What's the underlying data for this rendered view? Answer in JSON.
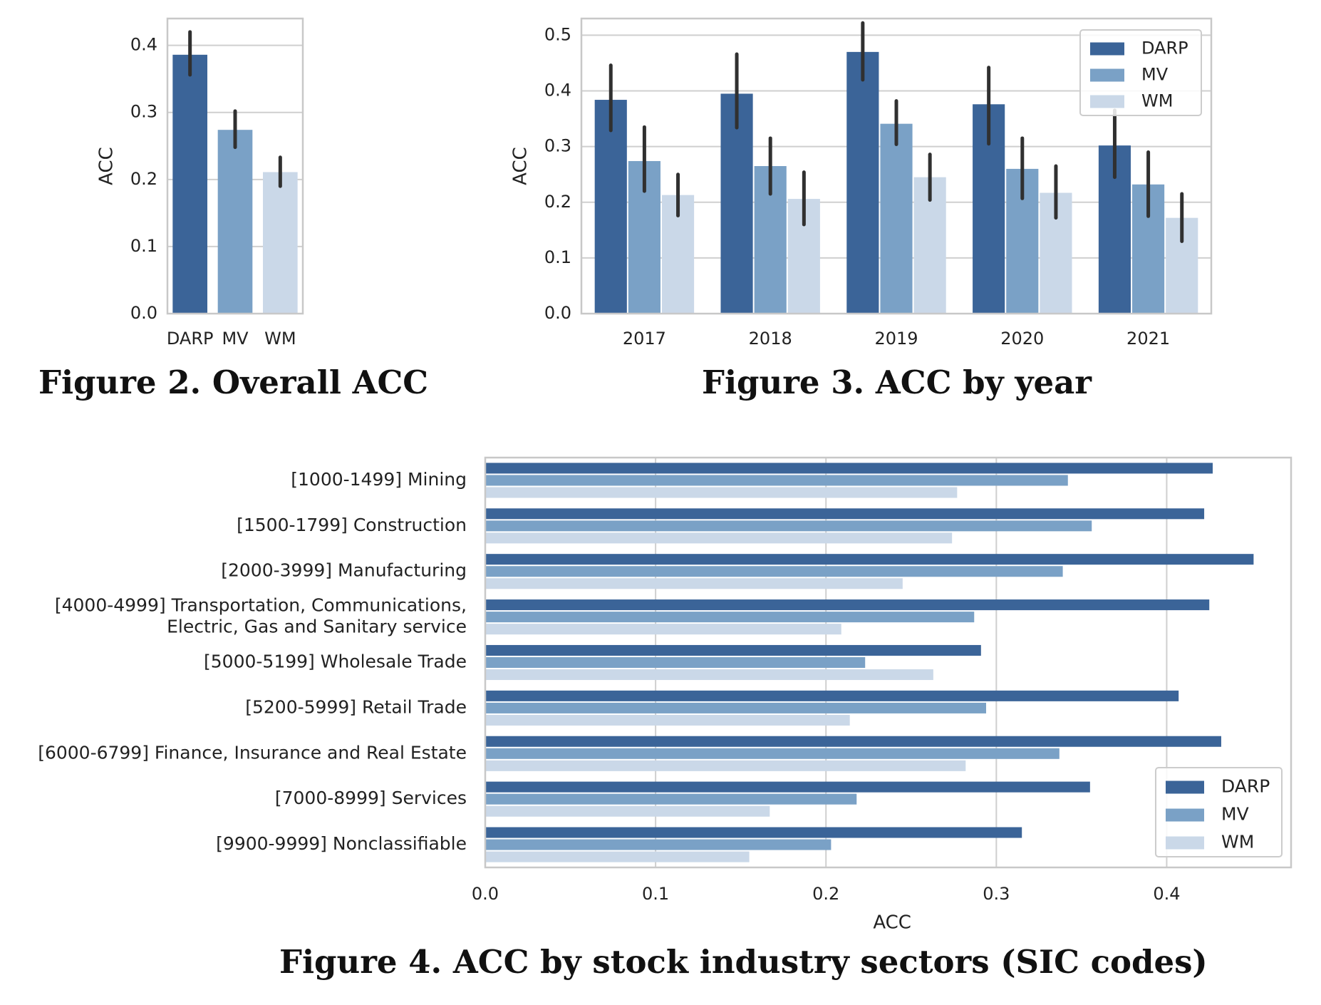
{
  "colors": {
    "DARP": "#3b6498",
    "MV": "#7aa1c6",
    "WM": "#cad8e8",
    "grid": "#cfcfcf",
    "frame": "#c8c8c8",
    "error": "#303030",
    "text": "#222222"
  },
  "captions": {
    "fig2": "Figure 2.  Overall ACC",
    "fig3": "Figure 3.  ACC by year",
    "fig4": "Figure 4.  ACC by stock industry sectors (SIC codes)"
  },
  "chart_data": [
    {
      "id": "fig2",
      "type": "bar",
      "title": "Overall ACC",
      "xlabel": "",
      "ylabel": "ACC",
      "ylim": [
        0,
        0.44
      ],
      "yticks": [
        0.0,
        0.1,
        0.2,
        0.3,
        0.4
      ],
      "ytick_labels": [
        "0.0",
        "0.1",
        "0.2",
        "0.3",
        "0.4"
      ],
      "grid": true,
      "categories": [
        "DARP",
        "MV",
        "WM"
      ],
      "values": [
        0.386,
        0.274,
        0.211
      ],
      "errors": [
        [
          0.356,
          0.42
        ],
        [
          0.248,
          0.302
        ],
        [
          0.19,
          0.233
        ]
      ]
    },
    {
      "id": "fig3",
      "type": "bar",
      "title": "ACC by year",
      "xlabel": "",
      "ylabel": "ACC",
      "ylim": [
        0,
        0.53
      ],
      "yticks": [
        0.0,
        0.1,
        0.2,
        0.3,
        0.4,
        0.5
      ],
      "ytick_labels": [
        "0.0",
        "0.1",
        "0.2",
        "0.3",
        "0.4",
        "0.5"
      ],
      "grid": true,
      "legend": "top-right",
      "categories": [
        "2017",
        "2018",
        "2019",
        "2020",
        "2021"
      ],
      "series": [
        {
          "name": "DARP",
          "values": [
            0.384,
            0.395,
            0.47,
            0.376,
            0.302
          ],
          "errors": [
            [
              0.329,
              0.446
            ],
            [
              0.334,
              0.466
            ],
            [
              0.42,
              0.522
            ],
            [
              0.305,
              0.442
            ],
            [
              0.245,
              0.365
            ]
          ]
        },
        {
          "name": "MV",
          "values": [
            0.274,
            0.265,
            0.341,
            0.26,
            0.232
          ],
          "errors": [
            [
              0.22,
              0.335
            ],
            [
              0.215,
              0.315
            ],
            [
              0.304,
              0.382
            ],
            [
              0.207,
              0.315
            ],
            [
              0.175,
              0.29
            ]
          ]
        },
        {
          "name": "WM",
          "values": [
            0.213,
            0.206,
            0.245,
            0.217,
            0.172
          ],
          "errors": [
            [
              0.176,
              0.25
            ],
            [
              0.16,
              0.254
            ],
            [
              0.204,
              0.286
            ],
            [
              0.172,
              0.265
            ],
            [
              0.13,
              0.215
            ]
          ]
        }
      ]
    },
    {
      "id": "fig4",
      "type": "bar",
      "orientation": "horizontal",
      "title": "ACC by stock industry sectors (SIC codes)",
      "xlabel": "ACC",
      "ylabel": "",
      "xlim": [
        0,
        0.473
      ],
      "xticks": [
        0.0,
        0.1,
        0.2,
        0.3,
        0.4
      ],
      "xtick_labels": [
        "0.0",
        "0.1",
        "0.2",
        "0.3",
        "0.4"
      ],
      "grid": true,
      "legend": "bottom-right",
      "categories": [
        "[1000-1499] Mining",
        "[1500-1799] Construction",
        "[2000-3999] Manufacturing",
        "[4000-4999] Transportation, Communications,\nElectric, Gas and Sanitary service",
        "[5000-5199] Wholesale Trade",
        "[5200-5999] Retail Trade",
        "[6000-6799] Finance, Insurance and Real Estate",
        "[7000-8999] Services",
        "[9900-9999] Nonclassifiable"
      ],
      "series": [
        {
          "name": "DARP",
          "values": [
            0.427,
            0.422,
            0.451,
            0.425,
            0.291,
            0.407,
            0.432,
            0.355,
            0.315
          ]
        },
        {
          "name": "MV",
          "values": [
            0.342,
            0.356,
            0.339,
            0.287,
            0.223,
            0.294,
            0.337,
            0.218,
            0.203
          ]
        },
        {
          "name": "WM",
          "values": [
            0.277,
            0.274,
            0.245,
            0.209,
            0.263,
            0.214,
            0.282,
            0.167,
            0.155
          ]
        }
      ]
    }
  ]
}
